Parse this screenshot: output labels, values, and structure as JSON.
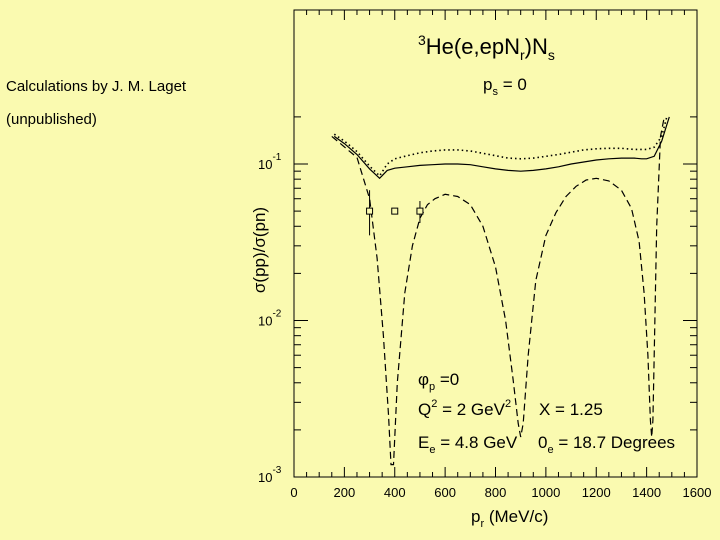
{
  "notes": {
    "line1": "Calculations by J. M. Laget",
    "line2": "(unpublished)"
  },
  "chart_data": {
    "type": "line",
    "title": {
      "sup": "3",
      "main": "He(e,epN",
      "sub1": "r",
      "close": ")N",
      "sub2": "s"
    },
    "subtitle": {
      "p": "p",
      "sub": "s",
      "rest": " = 0"
    },
    "ylabel": "σ(pp)/σ(pn)",
    "xlabel": {
      "p": "p",
      "sub": "r",
      "rest": " (MeV/c)"
    },
    "xlim": [
      0,
      1600
    ],
    "ylim": [
      0.001,
      0.2
    ],
    "yscale": "log",
    "xticks": [
      0,
      200,
      400,
      600,
      800,
      1000,
      1200,
      1400,
      1600
    ],
    "yticks": [
      {
        "value": 0.1,
        "base": "10",
        "exp": "-1"
      },
      {
        "value": 0.01,
        "base": "10",
        "exp": "-2"
      },
      {
        "value": 0.001,
        "base": "10",
        "exp": "-3"
      }
    ],
    "series": [
      {
        "style": "dotted",
        "x": [
          160,
          200,
          250,
          300,
          340,
          370,
          400,
          450,
          500,
          550,
          600,
          650,
          700,
          750,
          800,
          850,
          900,
          950,
          1000,
          1050,
          1100,
          1150,
          1200,
          1250,
          1300,
          1350,
          1380,
          1400,
          1430,
          1460,
          1480
        ],
        "y": [
          0.155,
          0.14,
          0.12,
          0.097,
          0.084,
          0.1,
          0.108,
          0.113,
          0.118,
          0.121,
          0.123,
          0.123,
          0.121,
          0.117,
          0.113,
          0.109,
          0.108,
          0.109,
          0.112,
          0.115,
          0.119,
          0.123,
          0.125,
          0.126,
          0.126,
          0.124,
          0.124,
          0.124,
          0.128,
          0.15,
          0.2
        ]
      },
      {
        "style": "solid",
        "x": [
          160,
          200,
          250,
          300,
          340,
          370,
          400,
          450,
          500,
          550,
          600,
          650,
          700,
          750,
          800,
          850,
          900,
          950,
          1000,
          1050,
          1100,
          1150,
          1200,
          1250,
          1300,
          1350,
          1380,
          1400,
          1430,
          1460,
          1490
        ],
        "y": [
          0.15,
          0.135,
          0.115,
          0.093,
          0.081,
          0.091,
          0.094,
          0.096,
          0.098,
          0.099,
          0.1,
          0.1,
          0.099,
          0.096,
          0.093,
          0.091,
          0.09,
          0.091,
          0.093,
          0.096,
          0.1,
          0.103,
          0.106,
          0.108,
          0.109,
          0.109,
          0.108,
          0.108,
          0.112,
          0.14,
          0.2
        ]
      },
      {
        "style": "dashed",
        "x": [
          150,
          250,
          300,
          330,
          355,
          375,
          385,
          395,
          410,
          440,
          470,
          500,
          530,
          560,
          600,
          650,
          700,
          750,
          800,
          840,
          870,
          890,
          900,
          910,
          930,
          960,
          1000,
          1040,
          1080,
          1120,
          1160,
          1200,
          1250,
          1300,
          1340,
          1370,
          1390,
          1405,
          1415,
          1420,
          1425,
          1430,
          1440,
          1455,
          1470
        ],
        "y": [
          0.15,
          0.11,
          0.06,
          0.025,
          0.008,
          0.0025,
          0.0012,
          0.0012,
          0.004,
          0.015,
          0.03,
          0.045,
          0.055,
          0.06,
          0.064,
          0.062,
          0.055,
          0.04,
          0.022,
          0.01,
          0.0042,
          0.0022,
          0.0018,
          0.0022,
          0.006,
          0.018,
          0.035,
          0.049,
          0.062,
          0.072,
          0.079,
          0.081,
          0.078,
          0.068,
          0.052,
          0.032,
          0.015,
          0.006,
          0.0023,
          0.0018,
          0.0023,
          0.006,
          0.04,
          0.15,
          0.2
        ]
      }
    ],
    "points": [
      {
        "x": 300,
        "y": 0.05,
        "yerr": [
          0.035,
          0.068
        ]
      },
      {
        "x": 400,
        "y": 0.05
      },
      {
        "x": 500,
        "y": 0.05,
        "yerr": [
          0.042,
          0.058
        ]
      }
    ],
    "annotations": {
      "phi": {
        "sym": "φ",
        "sub": "p",
        "rest": " =0"
      },
      "q2": {
        "a": "Q",
        "sup": "2",
        "b": " = 2 GeV",
        "sup2": "2"
      },
      "x": "X = 1.25",
      "ee": {
        "a": "E",
        "sub": "e",
        "b": " = 4.8 GeV"
      },
      "theta": {
        "a": "0",
        "sub": "e",
        "b": " = 18.7 Degrees"
      }
    }
  }
}
